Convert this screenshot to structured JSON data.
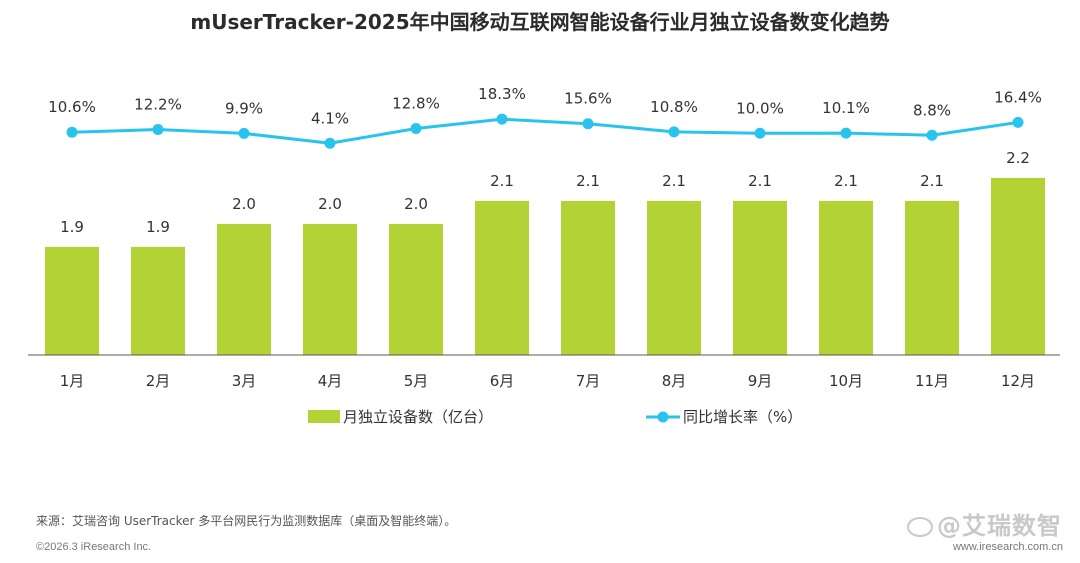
{
  "page": {
    "title": "mUserTracker-2025年中国移动互联网智能设备行业月独立设备数变化趋势",
    "source": "来源：艾瑞咨询 UserTracker 多平台网民行为监测数据库（桌面及智能终端）。",
    "copyright": "©2026.3 iResearch Inc.",
    "website": "www.iresearch.com.cn",
    "watermark": "@艾瑞数智"
  },
  "colors": {
    "bar": "#b2d235",
    "line": "#29c4ee",
    "axis": "#595959"
  },
  "chart_data": {
    "type": "bar+line",
    "title": "mUserTracker-2025年中国移动互联网智能设备行业月独立设备数变化趋势",
    "categories": [
      "1月",
      "2月",
      "3月",
      "4月",
      "5月",
      "6月",
      "7月",
      "8月",
      "9月",
      "10月",
      "11月",
      "12月"
    ],
    "series": [
      {
        "name": "月独立设备数（亿台）",
        "type": "bar",
        "values": [
          1.9,
          1.9,
          2.0,
          2.0,
          2.0,
          2.1,
          2.1,
          2.1,
          2.1,
          2.1,
          2.1,
          2.2
        ],
        "labels": [
          "1.9",
          "1.9",
          "2.0",
          "2.0",
          "2.0",
          "2.1",
          "2.1",
          "2.1",
          "2.1",
          "2.1",
          "2.1",
          "2.2"
        ]
      },
      {
        "name": "同比增长率（%）",
        "type": "line",
        "values": [
          10.6,
          12.2,
          9.9,
          4.1,
          12.8,
          18.3,
          15.6,
          10.8,
          10.0,
          10.1,
          8.8,
          16.4
        ],
        "labels": [
          "10.6%",
          "12.2%",
          "9.9%",
          "4.1%",
          "12.8%",
          "18.3%",
          "15.6%",
          "10.8%",
          "10.0%",
          "10.1%",
          "8.8%",
          "16.4%"
        ]
      }
    ],
    "legend": {
      "position": "bottom-center"
    },
    "grid": false
  }
}
